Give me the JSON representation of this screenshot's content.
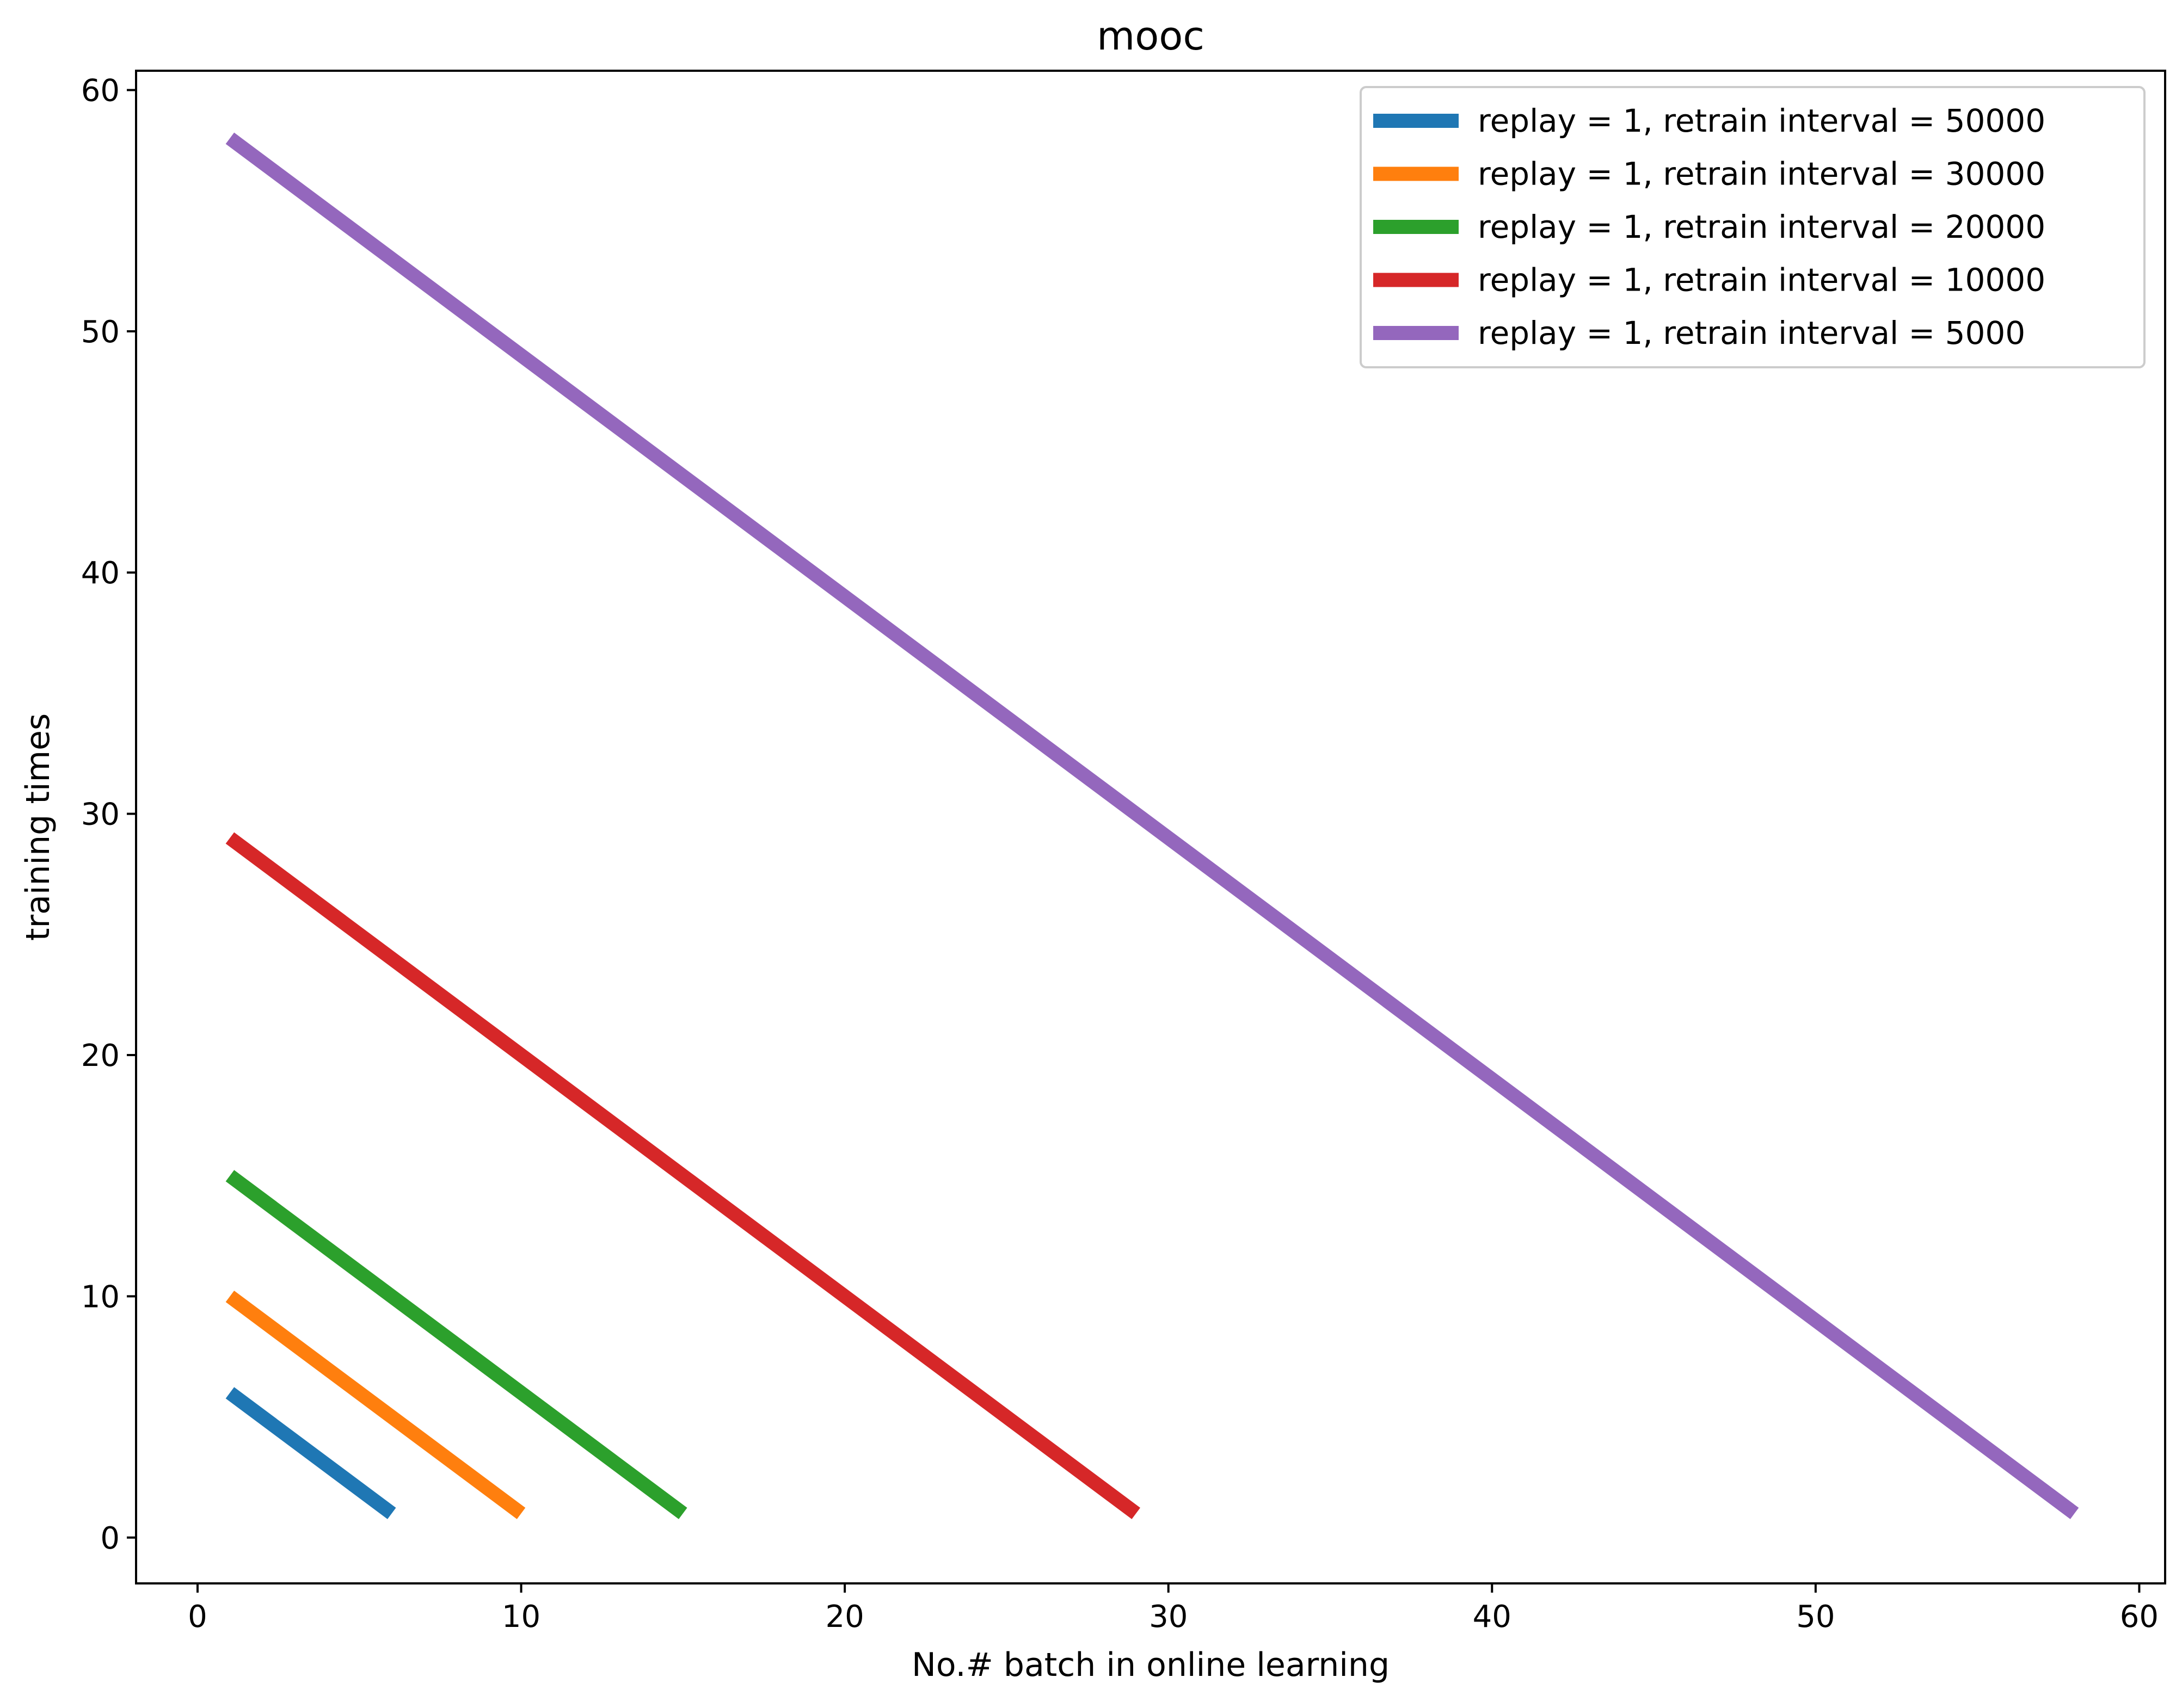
{
  "chart_data": {
    "type": "line",
    "title": "mooc",
    "xlabel": "No.# batch in online learning",
    "ylabel": "training times",
    "xlim": [
      -1.9,
      60.8
    ],
    "ylim": [
      -1.9,
      60.8
    ],
    "x_ticks": [
      0,
      10,
      20,
      30,
      40,
      50,
      60
    ],
    "y_ticks": [
      0,
      10,
      20,
      30,
      40,
      50,
      60
    ],
    "grid": false,
    "legend_position": "top-right",
    "series": [
      {
        "name": "replay = 1, retrain interval = 50000",
        "color": "#1f77b4",
        "points": [
          [
            1,
            6
          ],
          [
            6,
            1
          ]
        ]
      },
      {
        "name": "replay = 1, retrain interval = 30000",
        "color": "#ff7f0e",
        "points": [
          [
            1,
            10
          ],
          [
            10,
            1
          ]
        ]
      },
      {
        "name": "replay = 1, retrain interval = 20000",
        "color": "#2ca02c",
        "points": [
          [
            1,
            15
          ],
          [
            15,
            1
          ]
        ]
      },
      {
        "name": "replay = 1, retrain interval = 10000",
        "color": "#d62728",
        "points": [
          [
            1,
            29
          ],
          [
            29,
            1
          ]
        ]
      },
      {
        "name": "replay = 1, retrain interval = 5000",
        "color": "#9467bd",
        "points": [
          [
            1,
            58
          ],
          [
            58,
            1
          ]
        ]
      }
    ]
  }
}
